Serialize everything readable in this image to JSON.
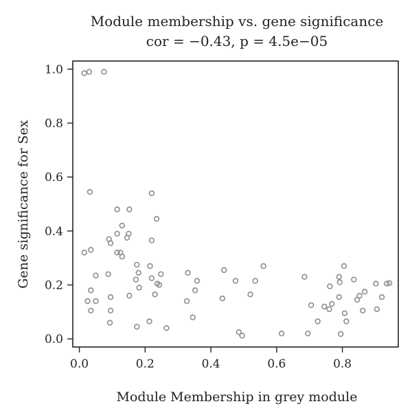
{
  "chart_data": {
    "type": "scatter",
    "title": "Module membership vs. gene significance",
    "subtitle": "cor = −0.43, p = 4.5e−05",
    "xlabel": "Module Membership in grey module",
    "ylabel": "Gene significance for Sex",
    "xlim": [
      -0.02,
      0.97
    ],
    "ylim": [
      -0.03,
      1.03
    ],
    "x_ticks": [
      0.0,
      0.2,
      0.4,
      0.6,
      0.8
    ],
    "x_tick_labels": [
      "0.0",
      "0.2",
      "0.4",
      "0.6",
      "0.8"
    ],
    "y_ticks": [
      0.0,
      0.2,
      0.4,
      0.6,
      0.8,
      1.0
    ],
    "y_tick_labels": [
      "0.0",
      "0.2",
      "0.4",
      "0.6",
      "0.8",
      "1.0"
    ],
    "grid": false,
    "marker": "open-circle",
    "point_color": "#8c8c8c",
    "points": [
      {
        "x": 0.015,
        "y": 0.985
      },
      {
        "x": 0.03,
        "y": 0.99
      },
      {
        "x": 0.075,
        "y": 0.99
      },
      {
        "x": 0.032,
        "y": 0.545
      },
      {
        "x": 0.015,
        "y": 0.32
      },
      {
        "x": 0.035,
        "y": 0.33
      },
      {
        "x": 0.035,
        "y": 0.18
      },
      {
        "x": 0.025,
        "y": 0.14
      },
      {
        "x": 0.05,
        "y": 0.235
      },
      {
        "x": 0.05,
        "y": 0.14
      },
      {
        "x": 0.035,
        "y": 0.105
      },
      {
        "x": 0.09,
        "y": 0.37
      },
      {
        "x": 0.095,
        "y": 0.355
      },
      {
        "x": 0.088,
        "y": 0.24
      },
      {
        "x": 0.095,
        "y": 0.155
      },
      {
        "x": 0.095,
        "y": 0.105
      },
      {
        "x": 0.093,
        "y": 0.06
      },
      {
        "x": 0.115,
        "y": 0.48
      },
      {
        "x": 0.13,
        "y": 0.42
      },
      {
        "x": 0.115,
        "y": 0.39
      },
      {
        "x": 0.145,
        "y": 0.375
      },
      {
        "x": 0.15,
        "y": 0.39
      },
      {
        "x": 0.115,
        "y": 0.32
      },
      {
        "x": 0.125,
        "y": 0.32
      },
      {
        "x": 0.13,
        "y": 0.305
      },
      {
        "x": 0.152,
        "y": 0.48
      },
      {
        "x": 0.152,
        "y": 0.16
      },
      {
        "x": 0.175,
        "y": 0.275
      },
      {
        "x": 0.18,
        "y": 0.245
      },
      {
        "x": 0.172,
        "y": 0.22
      },
      {
        "x": 0.182,
        "y": 0.19
      },
      {
        "x": 0.175,
        "y": 0.045
      },
      {
        "x": 0.22,
        "y": 0.54
      },
      {
        "x": 0.22,
        "y": 0.365
      },
      {
        "x": 0.235,
        "y": 0.445
      },
      {
        "x": 0.215,
        "y": 0.27
      },
      {
        "x": 0.22,
        "y": 0.225
      },
      {
        "x": 0.237,
        "y": 0.205
      },
      {
        "x": 0.243,
        "y": 0.2
      },
      {
        "x": 0.248,
        "y": 0.24
      },
      {
        "x": 0.23,
        "y": 0.165
      },
      {
        "x": 0.213,
        "y": 0.065
      },
      {
        "x": 0.265,
        "y": 0.04
      },
      {
        "x": 0.33,
        "y": 0.245
      },
      {
        "x": 0.327,
        "y": 0.14
      },
      {
        "x": 0.358,
        "y": 0.215
      },
      {
        "x": 0.352,
        "y": 0.18
      },
      {
        "x": 0.345,
        "y": 0.08
      },
      {
        "x": 0.44,
        "y": 0.255
      },
      {
        "x": 0.435,
        "y": 0.15
      },
      {
        "x": 0.475,
        "y": 0.215
      },
      {
        "x": 0.485,
        "y": 0.025
      },
      {
        "x": 0.495,
        "y": 0.012
      },
      {
        "x": 0.52,
        "y": 0.165
      },
      {
        "x": 0.535,
        "y": 0.215
      },
      {
        "x": 0.56,
        "y": 0.27
      },
      {
        "x": 0.615,
        "y": 0.02
      },
      {
        "x": 0.685,
        "y": 0.23
      },
      {
        "x": 0.695,
        "y": 0.02
      },
      {
        "x": 0.705,
        "y": 0.125
      },
      {
        "x": 0.725,
        "y": 0.065
      },
      {
        "x": 0.745,
        "y": 0.12
      },
      {
        "x": 0.76,
        "y": 0.11
      },
      {
        "x": 0.762,
        "y": 0.195
      },
      {
        "x": 0.768,
        "y": 0.13
      },
      {
        "x": 0.79,
        "y": 0.23
      },
      {
        "x": 0.792,
        "y": 0.21
      },
      {
        "x": 0.79,
        "y": 0.155
      },
      {
        "x": 0.795,
        "y": 0.018
      },
      {
        "x": 0.805,
        "y": 0.27
      },
      {
        "x": 0.807,
        "y": 0.095
      },
      {
        "x": 0.812,
        "y": 0.065
      },
      {
        "x": 0.835,
        "y": 0.22
      },
      {
        "x": 0.845,
        "y": 0.145
      },
      {
        "x": 0.852,
        "y": 0.16
      },
      {
        "x": 0.862,
        "y": 0.105
      },
      {
        "x": 0.868,
        "y": 0.175
      },
      {
        "x": 0.902,
        "y": 0.205
      },
      {
        "x": 0.905,
        "y": 0.11
      },
      {
        "x": 0.92,
        "y": 0.155
      },
      {
        "x": 0.935,
        "y": 0.205
      },
      {
        "x": 0.943,
        "y": 0.207
      }
    ]
  }
}
